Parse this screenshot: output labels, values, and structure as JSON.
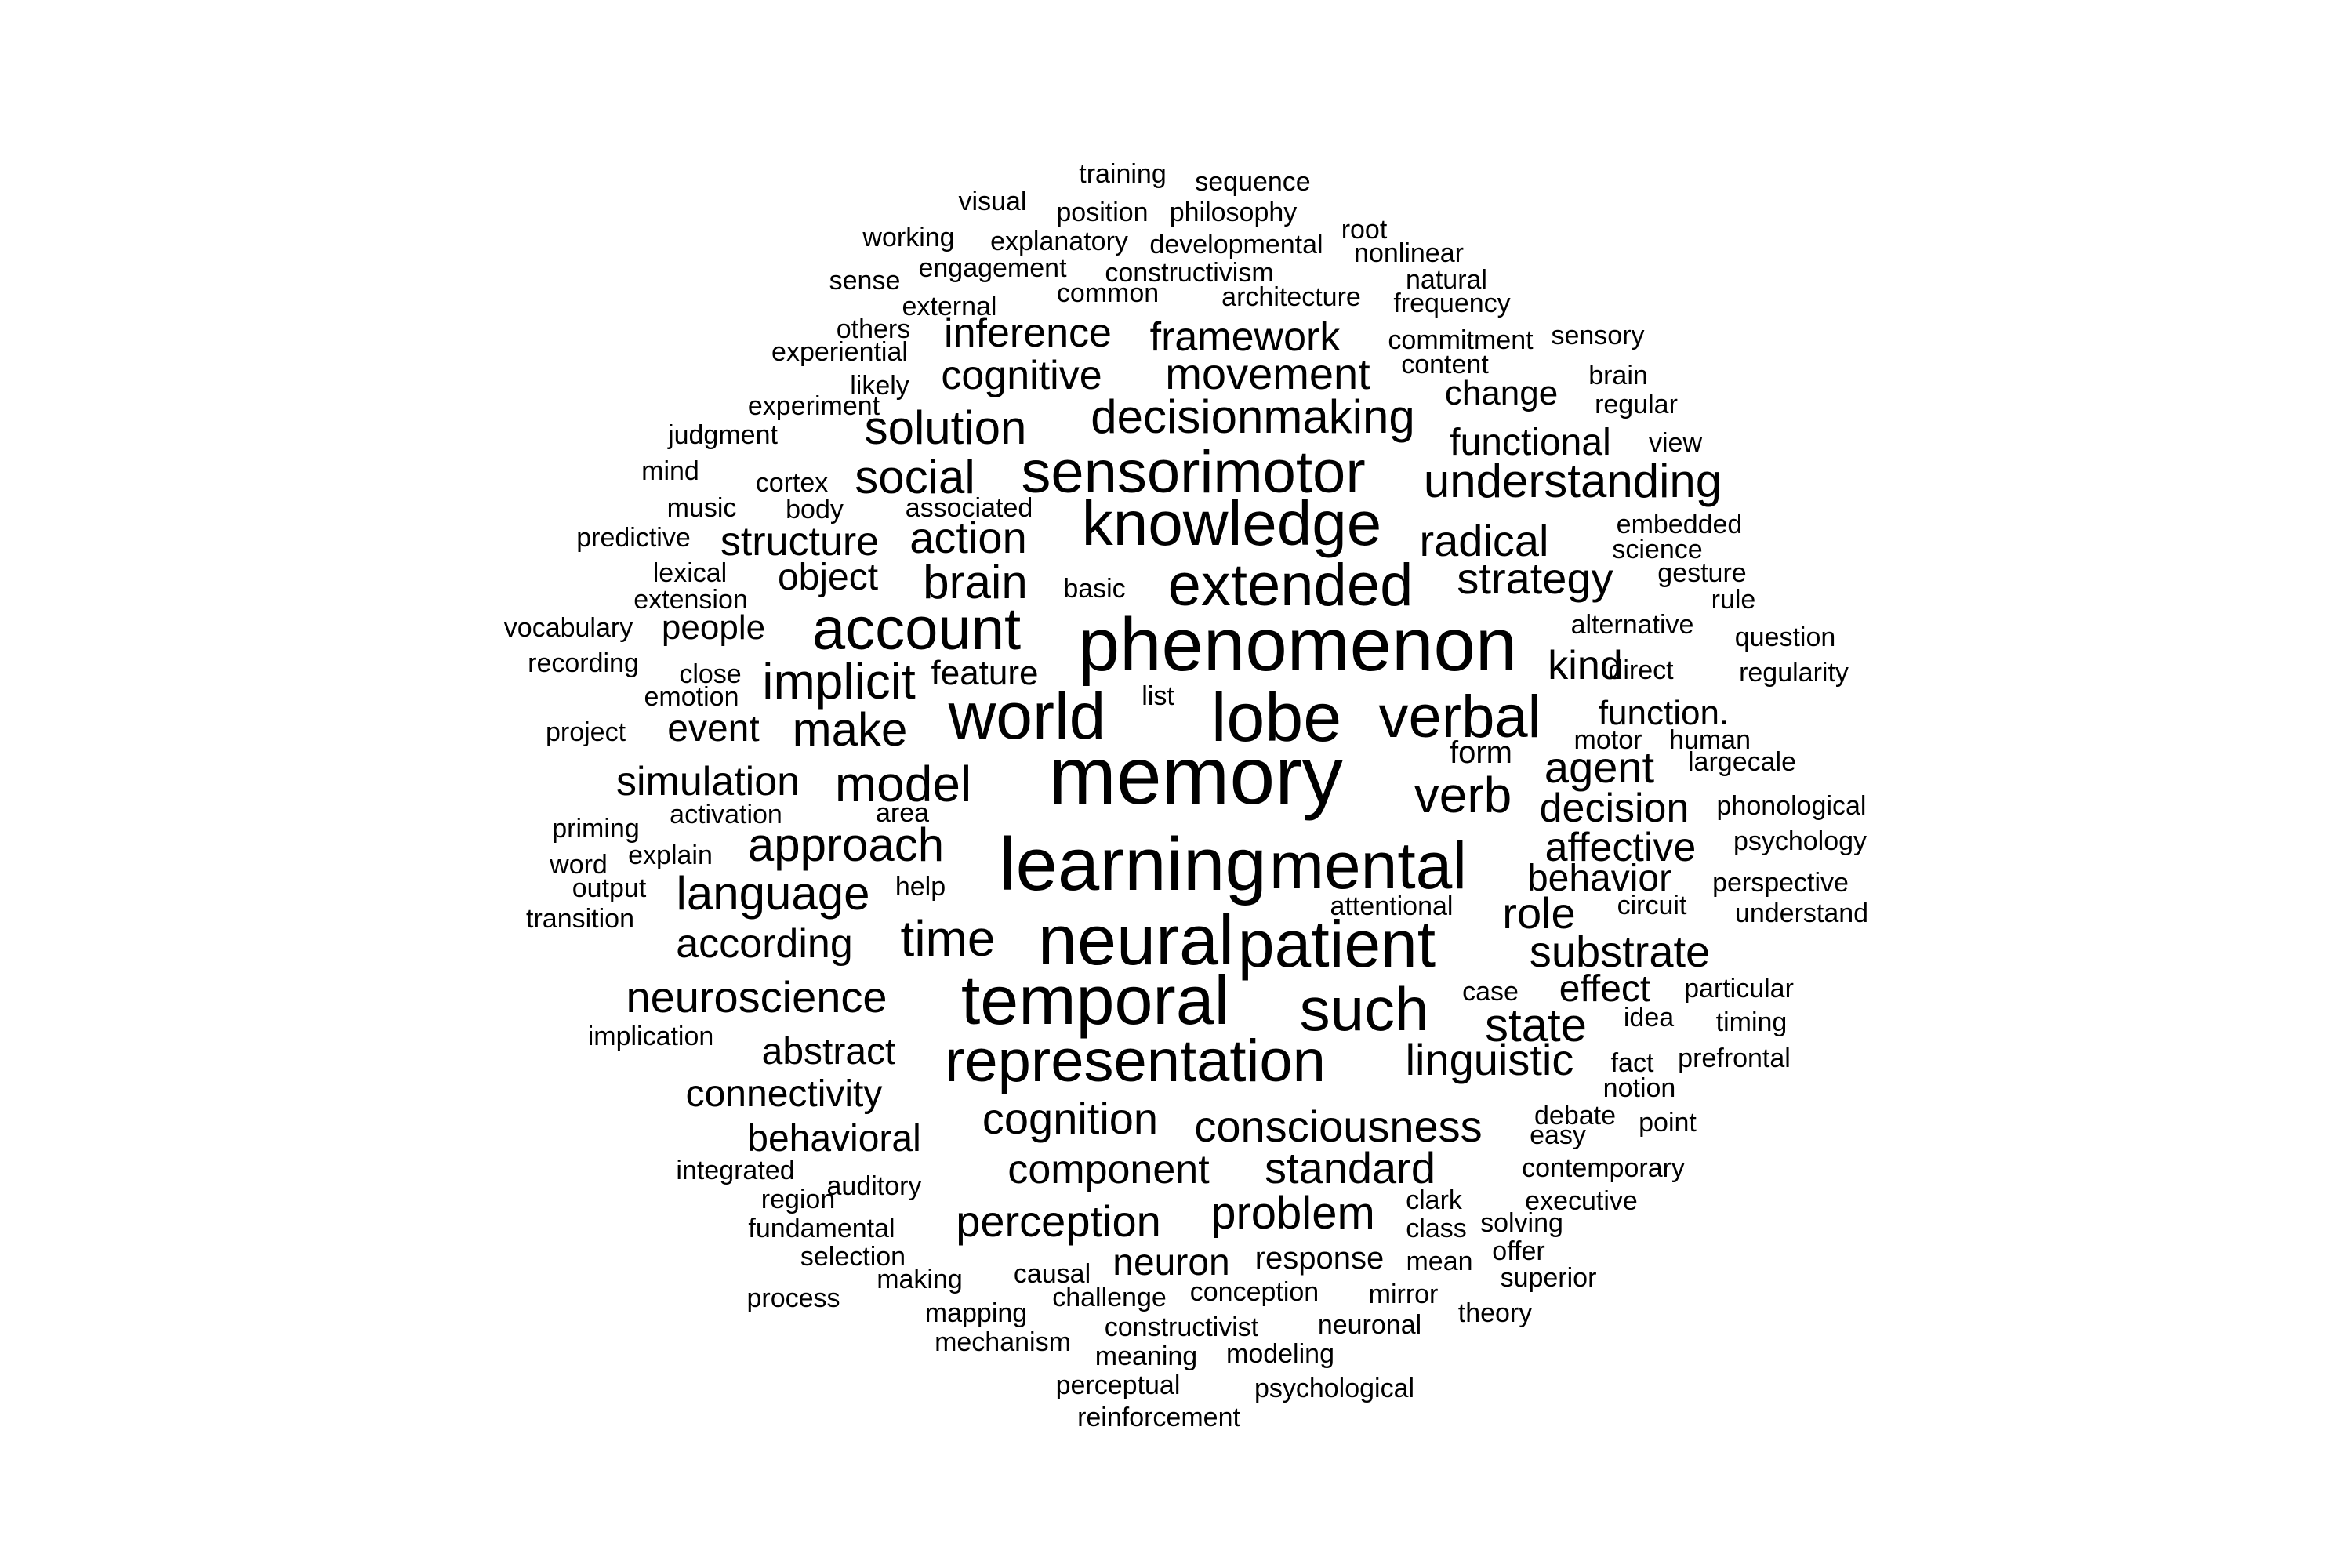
{
  "words": [
    "training",
    "sequence",
    "visual",
    "position",
    "philosophy",
    "root",
    "working",
    "explanatory",
    "developmental",
    "nonlinear",
    "engagement",
    "sense",
    "constructivism",
    "natural",
    "common",
    "external",
    "architecture",
    "frequency",
    "others",
    "inference",
    "framework",
    "commitment",
    "sensory",
    "experiential",
    "content",
    "brain",
    "cognitive",
    "movement",
    "likely",
    "change",
    "regular",
    "experiment",
    "decisionmaking",
    "judgment",
    "solution",
    "functional",
    "view",
    "mind",
    "cortex",
    "social",
    "sensorimotor",
    "understanding",
    "music",
    "body",
    "associated",
    "knowledge",
    "embedded",
    "predictive",
    "structure",
    "action",
    "radical",
    "science",
    "lexical",
    "object",
    "brain",
    "extended",
    "strategy",
    "gesture",
    "extension",
    "basic",
    "rule",
    "vocabulary",
    "people",
    "account",
    "alternative",
    "question",
    "recording",
    "phenomenon",
    "close",
    "direct",
    "kind",
    "regularity",
    "emotion",
    "implicit",
    "feature",
    "list",
    "project",
    "event",
    "world",
    "lobe",
    "verbal",
    "function.",
    "motor",
    "human",
    "make",
    "memory",
    "form",
    "largecale",
    "simulation",
    "model",
    "agent",
    "verb",
    "priming",
    "activation",
    "area",
    "decision",
    "phonological",
    "psychology",
    "approach",
    "explain",
    "affective",
    "word",
    "learning",
    "mental",
    "perspective",
    "output",
    "behavior",
    "help",
    "language",
    "transition",
    "attentional",
    "circuit",
    "role",
    "understand",
    "according",
    "time",
    "neural",
    "patient",
    "substrate",
    "neuroscience",
    "case",
    "effect",
    "particular",
    "temporal",
    "such",
    "idea",
    "timing",
    "implication",
    "state",
    "abstract",
    "representation",
    "fact",
    "prefrontal",
    "linguistic",
    "notion",
    "connectivity",
    "debate",
    "point",
    "cognition",
    "easy",
    "consciousness",
    "behavioral",
    "contemporary",
    "integrated",
    "component",
    "standard",
    "auditory",
    "clark",
    "executive",
    "region",
    "problem",
    "perception",
    "solving",
    "fundamental",
    "class",
    "selection",
    "response",
    "offer",
    "neuron",
    "mean",
    "causal",
    "superior",
    "making",
    "challenge",
    "conception",
    "mirror",
    "process",
    "mapping",
    "theory",
    "constructivist",
    "neuronal",
    "mechanism",
    "meaning",
    "modeling",
    "perceptual",
    "psychological",
    "reinforcement"
  ]
}
